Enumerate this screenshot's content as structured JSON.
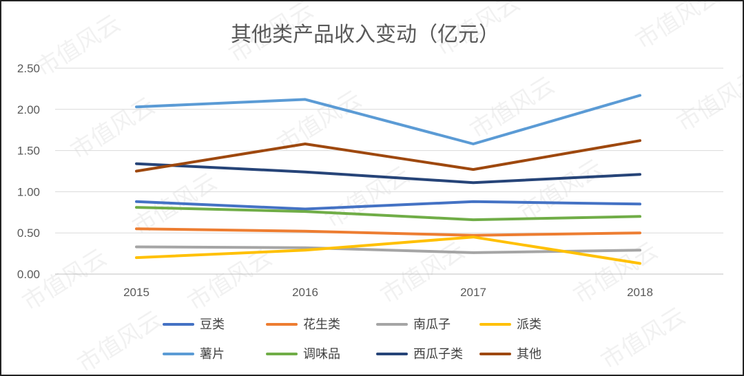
{
  "chart_data": {
    "type": "line",
    "title": "其他类产品收入变动（亿元）",
    "xlabel": "",
    "ylabel": "",
    "x": [
      "2015",
      "2016",
      "2017",
      "2018"
    ],
    "ylim": [
      0,
      2.5
    ],
    "yticks": [
      "0.00",
      "0.50",
      "1.00",
      "1.50",
      "2.00",
      "2.50"
    ],
    "grid": true,
    "legend_position": "bottom",
    "series": [
      {
        "name": "豆类",
        "color": "#4472C4",
        "values": [
          0.88,
          0.79,
          0.88,
          0.85
        ]
      },
      {
        "name": "花生类",
        "color": "#ED7D31",
        "values": [
          0.55,
          0.52,
          0.47,
          0.5
        ]
      },
      {
        "name": "南瓜子",
        "color": "#A5A5A5",
        "values": [
          0.33,
          0.32,
          0.26,
          0.29
        ]
      },
      {
        "name": "派类",
        "color": "#FFC000",
        "values": [
          0.2,
          0.29,
          0.45,
          0.13
        ]
      },
      {
        "name": "薯片",
        "color": "#5B9BD5",
        "values": [
          2.03,
          2.12,
          1.58,
          2.17
        ]
      },
      {
        "name": "调味品",
        "color": "#70AD47",
        "values": [
          0.81,
          0.76,
          0.66,
          0.7
        ]
      },
      {
        "name": "西瓜子类",
        "color": "#264478",
        "values": [
          1.34,
          1.24,
          1.11,
          1.21
        ]
      },
      {
        "name": "其他",
        "color": "#9E480E",
        "values": [
          1.25,
          1.58,
          1.27,
          1.62
        ]
      }
    ]
  },
  "watermark_text": "市值风云"
}
